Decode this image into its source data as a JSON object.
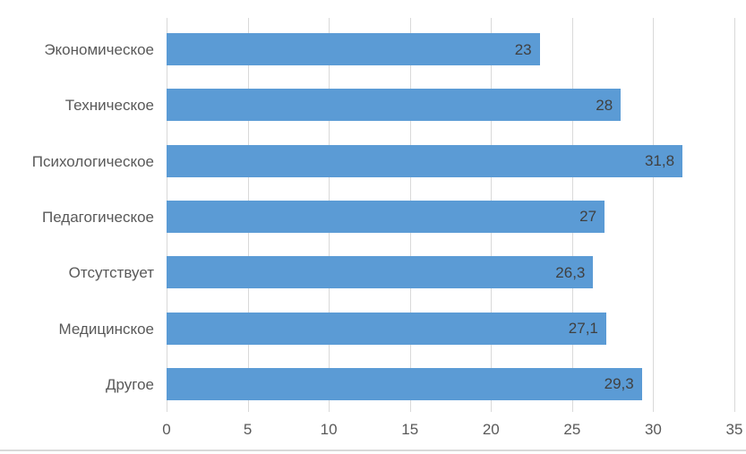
{
  "chart_data": {
    "type": "bar",
    "orientation": "horizontal",
    "title": "",
    "categories": [
      "Экономическое",
      "Техническое",
      "Психологическое",
      "Педагогическое",
      "Отсутствует",
      "Медицинское",
      "Другое"
    ],
    "values": [
      23,
      28,
      31.8,
      27,
      26.3,
      27.1,
      29.3
    ],
    "value_labels": [
      "23",
      "28",
      "31,8",
      "27",
      "26,3",
      "27,1",
      "29,3"
    ],
    "x_ticks": [
      "0",
      "5",
      "10",
      "15",
      "20",
      "25",
      "30",
      "35"
    ],
    "x_tick_values": [
      0,
      5,
      10,
      15,
      20,
      25,
      30,
      35
    ],
    "xlim": [
      0,
      35
    ],
    "xlabel": "",
    "ylabel": "",
    "grid": true,
    "legend": "none",
    "data_label_position": "inside-end",
    "colors": {
      "bar": "#5B9BD5",
      "gridline": "#D9D9D9",
      "axis_label": "#595959",
      "value_label": "#404040",
      "background": "#FFFFFF",
      "border_bottom": "#D9D9D9"
    }
  }
}
